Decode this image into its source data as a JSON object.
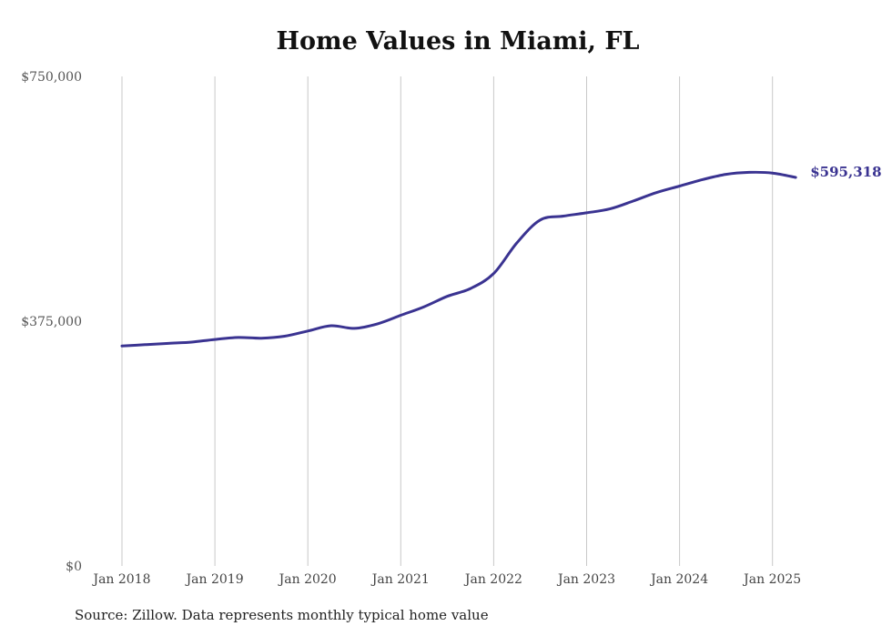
{
  "chart_data": {
    "type": "line",
    "title": "Home Values in Miami, FL",
    "xlabel": "",
    "ylabel": "",
    "ylim": [
      0,
      750000
    ],
    "yticks": [
      {
        "value": 0,
        "label": "$0"
      },
      {
        "value": 375000,
        "label": "$375,000"
      },
      {
        "value": 750000,
        "label": "$750,000"
      }
    ],
    "xticks": [
      "Jan 2018",
      "Jan 2019",
      "Jan 2020",
      "Jan 2021",
      "Jan 2022",
      "Jan 2023",
      "Jan 2024",
      "Jan 2025"
    ],
    "grid": "vertical",
    "line_color": "#3a3391",
    "series": [
      {
        "values_note_free": true,
        "points": [
          {
            "x": "2018-01",
            "y": 337000
          },
          {
            "x": "2018-04",
            "y": 339000
          },
          {
            "x": "2018-07",
            "y": 341000
          },
          {
            "x": "2018-10",
            "y": 343000
          },
          {
            "x": "2019-01",
            "y": 347000
          },
          {
            "x": "2019-04",
            "y": 350000
          },
          {
            "x": "2019-07",
            "y": 349000
          },
          {
            "x": "2019-10",
            "y": 352000
          },
          {
            "x": "2020-01",
            "y": 360000
          },
          {
            "x": "2020-04",
            "y": 368000
          },
          {
            "x": "2020-07",
            "y": 364000
          },
          {
            "x": "2020-10",
            "y": 371000
          },
          {
            "x": "2021-01",
            "y": 384000
          },
          {
            "x": "2021-04",
            "y": 397000
          },
          {
            "x": "2021-07",
            "y": 413000
          },
          {
            "x": "2021-10",
            "y": 425000
          },
          {
            "x": "2022-01",
            "y": 448000
          },
          {
            "x": "2022-04",
            "y": 495000
          },
          {
            "x": "2022-07",
            "y": 530000
          },
          {
            "x": "2022-10",
            "y": 536000
          },
          {
            "x": "2023-01",
            "y": 541000
          },
          {
            "x": "2023-04",
            "y": 547000
          },
          {
            "x": "2023-07",
            "y": 559000
          },
          {
            "x": "2023-10",
            "y": 572000
          },
          {
            "x": "2024-01",
            "y": 582000
          },
          {
            "x": "2024-04",
            "y": 592000
          },
          {
            "x": "2024-07",
            "y": 600000
          },
          {
            "x": "2024-10",
            "y": 603000
          },
          {
            "x": "2025-01",
            "y": 602000
          },
          {
            "x": "2025-04",
            "y": 595318
          }
        ]
      }
    ],
    "end_label": "$595,318"
  },
  "source_text": "Source: Zillow. Data represents monthly typical home value"
}
